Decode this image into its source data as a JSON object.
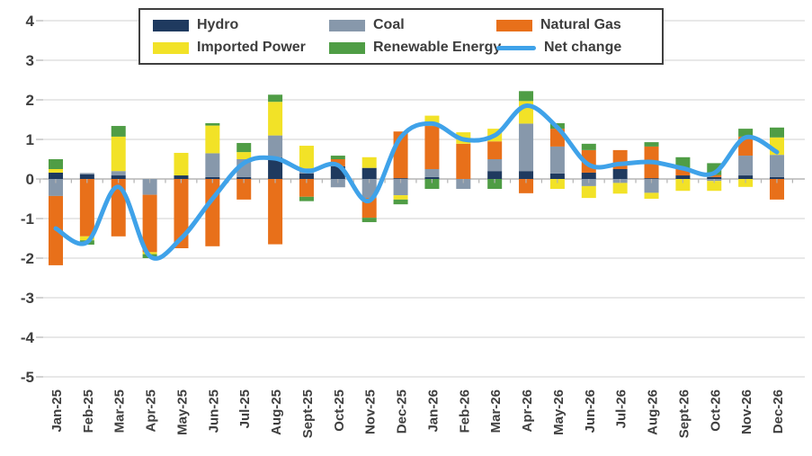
{
  "chart_data": {
    "type": "combo-stacked-bar-line",
    "title": "",
    "categories": [
      "Jan-25",
      "Feb-25",
      "Mar-25",
      "Apr-25",
      "May-25",
      "Jun-25",
      "Jul-25",
      "Aug-25",
      "Sept-25",
      "Oct-25",
      "Nov-25",
      "Dec-25",
      "Jan-26",
      "Feb-26",
      "Mar-26",
      "Apr-26",
      "May-26",
      "Jun-26",
      "Jul-26",
      "Aug-26",
      "Sept-26",
      "Oct-26",
      "Nov-26",
      "Dec-26"
    ],
    "y_axis": {
      "min": -5,
      "max": 4,
      "ticks": [
        4,
        3,
        2,
        1,
        0,
        -1,
        -2,
        -3,
        -4,
        -5
      ]
    },
    "grid": true,
    "legend_position": "top",
    "bar_series": [
      {
        "name": "Hydro",
        "color": "#1f3a5f",
        "values": [
          0.16,
          0.12,
          0.09,
          0.0,
          0.09,
          0.05,
          0.05,
          0.55,
          0.14,
          0.32,
          0.28,
          0.02,
          0.05,
          0.0,
          0.2,
          0.2,
          0.14,
          0.16,
          0.25,
          0.02,
          0.09,
          0.05,
          0.09,
          0.05
        ]
      },
      {
        "name": "Coal",
        "color": "#8798ab",
        "values": [
          -0.43,
          0.03,
          0.11,
          -0.4,
          0.0,
          0.6,
          0.45,
          0.55,
          0.13,
          -0.21,
          -0.48,
          -0.41,
          0.2,
          -0.25,
          0.3,
          1.2,
          0.68,
          -0.18,
          -0.1,
          -0.35,
          0.0,
          -0.05,
          0.5,
          0.56
        ]
      },
      {
        "name": "Natural Gas",
        "color": "#e8701a",
        "values": [
          -1.75,
          -1.45,
          -1.45,
          -1.45,
          -1.75,
          -1.7,
          -0.52,
          -1.65,
          -0.45,
          0.18,
          -0.5,
          1.18,
          1.09,
          0.89,
          0.45,
          -0.36,
          0.45,
          0.57,
          0.48,
          0.8,
          0.16,
          0.05,
          0.48,
          -0.52
        ]
      },
      {
        "name": "Imported Power",
        "color": "#f2e227",
        "values": [
          0.09,
          -0.1,
          0.87,
          -0.05,
          0.57,
          0.7,
          0.18,
          0.85,
          0.57,
          0.0,
          0.27,
          -0.11,
          0.26,
          0.29,
          0.32,
          0.57,
          -0.25,
          -0.3,
          -0.27,
          -0.15,
          -0.3,
          -0.25,
          -0.2,
          0.44
        ]
      },
      {
        "name": "Renewable Energy",
        "color": "#4f9d45",
        "values": [
          0.25,
          -0.11,
          0.27,
          -0.1,
          0.0,
          0.06,
          0.23,
          0.18,
          -0.11,
          0.09,
          -0.11,
          -0.12,
          -0.25,
          0.0,
          -0.25,
          0.25,
          0.14,
          0.16,
          0.0,
          0.11,
          0.3,
          0.3,
          0.2,
          0.25
        ]
      }
    ],
    "line_series": {
      "name": "Net change",
      "color": "#3fa2e9",
      "values": [
        -1.25,
        -1.6,
        -0.2,
        -1.95,
        -1.5,
        -0.5,
        0.4,
        0.52,
        0.2,
        0.35,
        -0.55,
        1.05,
        1.4,
        1.0,
        1.1,
        1.85,
        1.3,
        0.36,
        0.38,
        0.43,
        0.27,
        0.15,
        1.05,
        0.68
      ]
    }
  },
  "legend": {
    "row1": [
      "Hydro",
      "Coal",
      "Natural Gas"
    ],
    "row2": [
      "Imported Power",
      "Renewable Energy",
      "Net change"
    ]
  },
  "colors": {
    "gridline": "#d9d9d9",
    "zero_axis": "#a6a6a6",
    "tick": "#b3b3b3",
    "text": "#3f3f3f",
    "background": "#ffffff"
  }
}
